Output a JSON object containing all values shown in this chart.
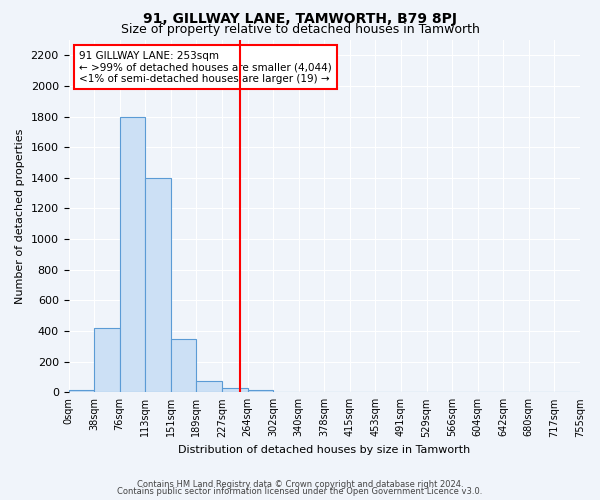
{
  "title": "91, GILLWAY LANE, TAMWORTH, B79 8PJ",
  "subtitle": "Size of property relative to detached houses in Tamworth",
  "xlabel": "Distribution of detached houses by size in Tamworth",
  "ylabel": "Number of detached properties",
  "bar_color": "#cce0f5",
  "bar_edge_color": "#5b9bd5",
  "bin_labels": [
    "0sqm",
    "38sqm",
    "76sqm",
    "113sqm",
    "151sqm",
    "189sqm",
    "227sqm",
    "264sqm",
    "302sqm",
    "340sqm",
    "378sqm",
    "415sqm",
    "453sqm",
    "491sqm",
    "529sqm",
    "566sqm",
    "604sqm",
    "642sqm",
    "680sqm",
    "717sqm",
    "755sqm"
  ],
  "bar_heights": [
    15,
    420,
    1800,
    1400,
    350,
    75,
    25,
    15,
    0,
    0,
    0,
    0,
    0,
    0,
    0,
    0,
    0,
    0,
    0,
    0
  ],
  "ylim": [
    0,
    2300
  ],
  "yticks": [
    0,
    200,
    400,
    600,
    800,
    1000,
    1200,
    1400,
    1600,
    1800,
    2000,
    2200
  ],
  "annotation_text": "91 GILLWAY LANE: 253sqm\n← >99% of detached houses are smaller (4,044)\n<1% of semi-detached houses are larger (19) →",
  "footer_line1": "Contains HM Land Registry data © Crown copyright and database right 2024.",
  "footer_line2": "Contains public sector information licensed under the Open Government Licence v3.0.",
  "background_color": "#f0f4fa",
  "grid_color": "#ffffff"
}
